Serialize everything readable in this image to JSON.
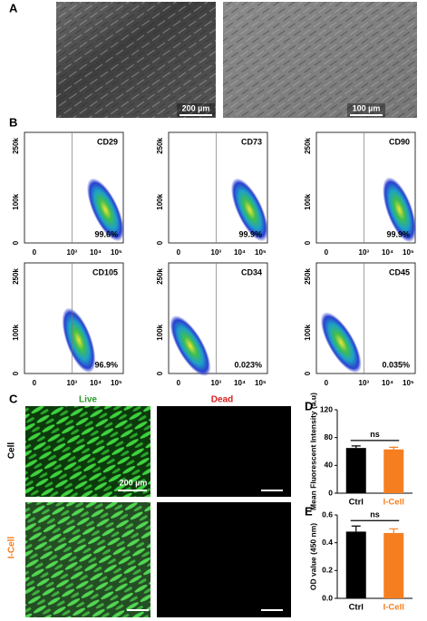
{
  "panel_a": {
    "label": "A",
    "scale_bars": [
      "200 µm",
      "100 µm"
    ]
  },
  "panel_b": {
    "label": "B",
    "x_ticks": [
      "0",
      "10³",
      "10⁴",
      "10⁵"
    ],
    "y_ticks": [
      "250k",
      "100k",
      "0"
    ],
    "plots": [
      {
        "marker": "CD29",
        "percent": "99.6%"
      },
      {
        "marker": "CD73",
        "percent": "99.9%"
      },
      {
        "marker": "CD90",
        "percent": "99.9%"
      },
      {
        "marker": "CD105",
        "percent": "96.9%"
      },
      {
        "marker": "CD34",
        "percent": "0.023%"
      },
      {
        "marker": "CD45",
        "percent": "0.035%"
      }
    ]
  },
  "panel_c": {
    "label": "C",
    "columns": [
      "Live",
      "Dead"
    ],
    "rows": [
      "Cell",
      "I-Cell"
    ],
    "scale_bar": "200 µm"
  },
  "chart_data": [
    {
      "type": "bar",
      "panel_label": "D",
      "ylabel": "Mean Fluorescent Intensity (a.u)",
      "categories": [
        "Ctrl",
        "I-Cell"
      ],
      "values": [
        65,
        63
      ],
      "errors": [
        3,
        3
      ],
      "colors": [
        "#000000",
        "#f57f20"
      ],
      "annotation": "ns",
      "ylim": [
        0,
        120
      ],
      "yticks": [
        0,
        40,
        80,
        120
      ]
    },
    {
      "type": "bar",
      "panel_label": "E",
      "ylabel": "OD value (450 nm)",
      "categories": [
        "Ctrl",
        "I-Cell"
      ],
      "values": [
        0.48,
        0.47
      ],
      "errors": [
        0.04,
        0.03
      ],
      "colors": [
        "#000000",
        "#f57f20"
      ],
      "annotation": "ns",
      "ylim": [
        0,
        0.6
      ],
      "yticks": [
        {
          "value": 0,
          "label": "0.0"
        },
        0.2,
        0.4,
        0.6
      ]
    }
  ]
}
